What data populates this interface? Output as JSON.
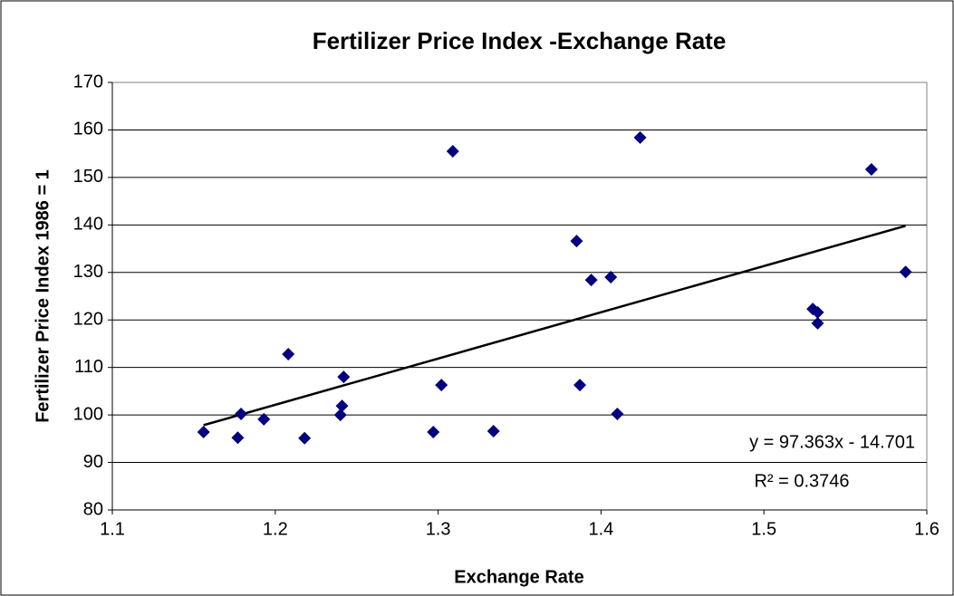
{
  "chart_data": {
    "type": "scatter",
    "title": "Fertilizer Price Index -Exchange Rate",
    "x_label": "Exchange Rate",
    "y_label": "Fertilizer Price Index 1986 = 1",
    "series": [
      {
        "color": "#000080",
        "x": [
          1.156,
          1.177,
          1.179,
          1.193,
          1.208,
          1.218,
          1.24,
          1.241,
          1.242,
          1.297,
          1.302,
          1.309,
          1.334,
          1.385,
          1.387,
          1.394,
          1.406,
          1.41,
          1.424,
          1.53,
          1.533,
          1.533,
          1.566,
          1.587
        ],
        "values": [
          96.4,
          95.2,
          100.2,
          99.1,
          112.8,
          95.1,
          100.0,
          101.9,
          108.0,
          96.4,
          106.3,
          155.5,
          96.6,
          136.6,
          106.3,
          128.4,
          129.0,
          100.2,
          158.4,
          122.3,
          121.6,
          119.3,
          151.7,
          130.1
        ]
      }
    ],
    "trendline": {
      "label": "y = 97.363x - 14.701",
      "r2_label": "R² = 0.3746",
      "slope": 97.363,
      "intercept": -14.701,
      "color": "#000000"
    },
    "xlim": [
      1.1,
      1.6
    ],
    "xticks": [
      {
        "value": 1.1,
        "label": "1.1"
      },
      {
        "value": 1.2,
        "label": "1.2"
      },
      {
        "value": 1.3,
        "label": "1.3"
      },
      {
        "value": 1.4,
        "label": "1.4"
      },
      {
        "value": 1.5,
        "label": "1.5"
      },
      {
        "value": 1.6,
        "label": "1.6"
      }
    ],
    "ylim": [
      80,
      170
    ],
    "yticks": [
      80,
      90,
      100,
      110,
      120,
      130,
      140,
      150,
      160,
      170
    ],
    "grid": true
  }
}
